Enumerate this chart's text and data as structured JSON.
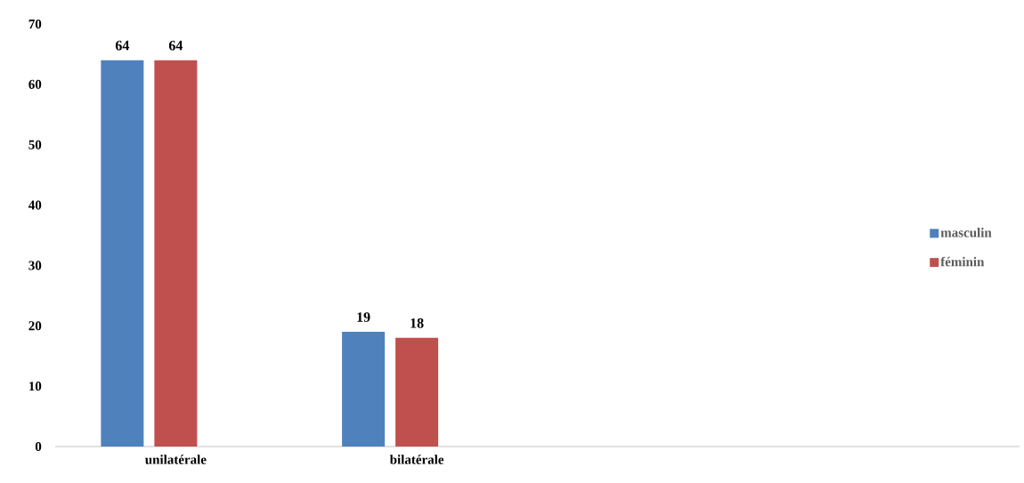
{
  "chart_data": {
    "type": "bar",
    "categories": [
      "unilatérale",
      "bilatérale",
      null,
      null
    ],
    "series": [
      {
        "name": "masculin",
        "color": "#4f81bd",
        "values": [
          64,
          19,
          null,
          null
        ]
      },
      {
        "name": "féminin",
        "color": "#c0504d",
        "values": [
          64,
          18,
          null,
          null
        ]
      }
    ],
    "ylim": [
      0,
      70
    ],
    "yticks": [
      0,
      10,
      20,
      30,
      40,
      50,
      60,
      70
    ],
    "grid": false,
    "legend": "right",
    "data_labels": true
  }
}
